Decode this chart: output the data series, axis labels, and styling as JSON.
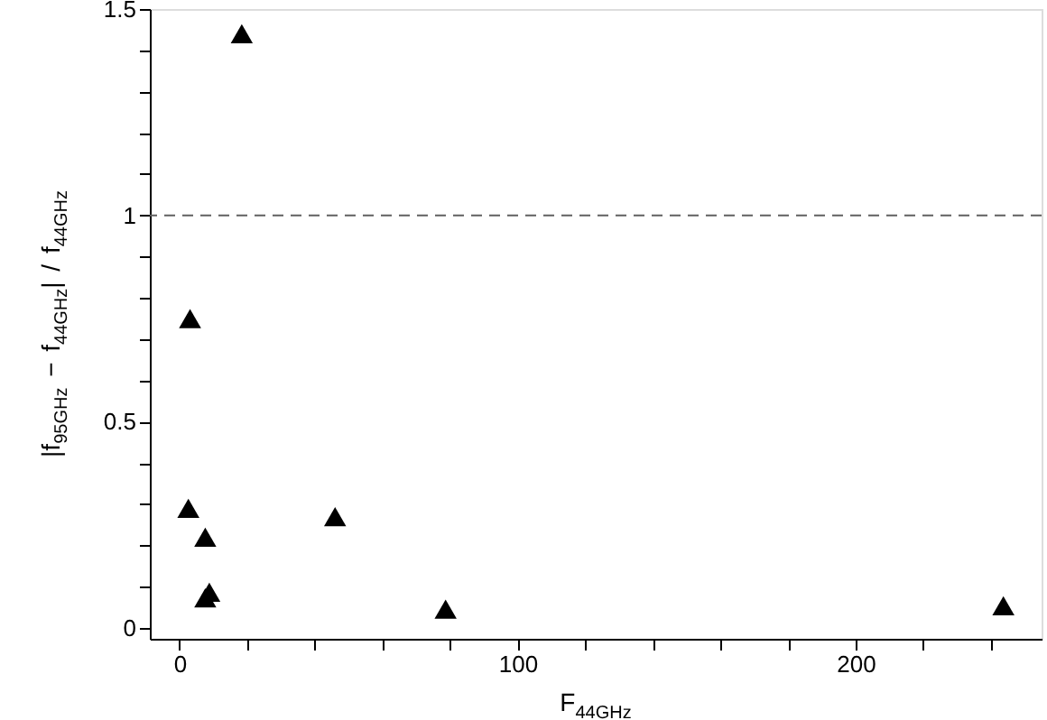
{
  "chart_data": {
    "type": "scatter",
    "xlabel": "F$_{44GHz}$",
    "ylabel": "|f$_{95GHz}$ − f$_{44GHz}$| / f$_{44GHz}$",
    "x": [
      18.4,
      3.1,
      2.6,
      7.6,
      8.8,
      7.6,
      46,
      78.7,
      243.7
    ],
    "series": [
      {
        "color": "#000000",
        "values": [
          1.44,
          0.75,
          0.29,
          0.22,
          0.087,
          0.073,
          0.27,
          0.046,
          0.054
        ]
      }
    ],
    "marker": "triangle",
    "xlim": [
      -8.8,
      255
    ],
    "ylim": [
      -0.026,
      1.5
    ],
    "xticks": [
      0,
      {
        "value": 20,
        "label": null
      },
      {
        "value": 40,
        "label": null
      },
      {
        "value": 60,
        "label": null
      },
      {
        "value": 80,
        "label": null
      },
      100,
      {
        "value": 120,
        "label": null
      },
      {
        "value": 140,
        "label": null
      },
      {
        "value": 160,
        "label": null
      },
      {
        "value": 180,
        "label": null
      },
      200,
      {
        "value": 220,
        "label": null
      },
      {
        "value": 240,
        "label": null
      }
    ],
    "yticks": [
      0,
      {
        "value": 0.1,
        "label": null
      },
      {
        "value": 0.2,
        "label": null
      },
      {
        "value": 0.3,
        "label": null
      },
      {
        "value": 0.4,
        "label": null
      },
      0.5,
      {
        "value": 0.6,
        "label": null
      },
      {
        "value": 0.7,
        "label": null
      },
      {
        "value": 0.8,
        "label": null
      },
      {
        "value": 0.9,
        "label": null
      },
      1,
      {
        "value": 1.1,
        "label": null
      },
      {
        "value": 1.2,
        "label": null
      },
      {
        "value": 1.3,
        "label": null
      },
      {
        "value": 1.4,
        "label": null
      },
      1.5
    ],
    "ref_lines": [
      {
        "axis": "y",
        "value": 1,
        "color": "#606060",
        "line_style": "dashed"
      }
    ],
    "grid": false
  }
}
